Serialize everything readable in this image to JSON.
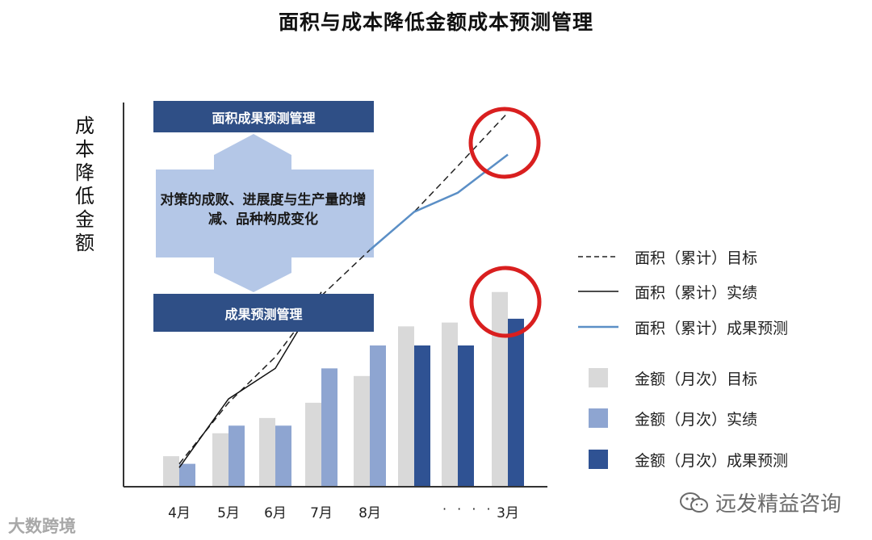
{
  "title": "面积与成本降低金额成本预测管理",
  "chart_data": {
    "type": "bar",
    "title": "面积与成本降低金额成本预测管理",
    "ylabel": "成本降低金额",
    "xlabel": "",
    "categories": [
      "4月",
      "5月",
      "6月",
      "7月",
      "8月",
      "",
      "",
      "3月"
    ],
    "gap_label": "· · · ·",
    "ylim": [
      0,
      100
    ],
    "series": [
      {
        "name": "金额（月次）目标",
        "kind": "bar",
        "color": "#d9d9d9",
        "values": [
          8,
          14,
          18,
          22,
          29,
          42,
          43,
          51
        ]
      },
      {
        "name": "金额（月次）实绩",
        "kind": "bar",
        "color": "#8ea5d1",
        "values": [
          6,
          16,
          16,
          31,
          37,
          null,
          null,
          null
        ]
      },
      {
        "name": "金额（月次）成果预测",
        "kind": "bar",
        "color": "#2f5293",
        "values": [
          null,
          null,
          null,
          null,
          null,
          37,
          37,
          44
        ]
      },
      {
        "name": "面积（累计）目标",
        "kind": "line",
        "style": "dashed",
        "color": "#222222",
        "values": [
          6,
          22,
          34,
          50,
          62,
          72,
          84,
          98
        ]
      },
      {
        "name": "面积（累计）实绩",
        "kind": "line",
        "style": "solid",
        "color": "#111111",
        "values": [
          5,
          23,
          31,
          51,
          null,
          null,
          null,
          null
        ]
      },
      {
        "name": "面积（累计）成果预测",
        "kind": "line",
        "style": "solid",
        "color": "#5b8fc6",
        "values": [
          null,
          null,
          null,
          null,
          62,
          72,
          77,
          87
        ]
      }
    ]
  },
  "annotation": {
    "top_box": "面积成果预测管理",
    "middle_text": "对策的成败、进展度与生产量的增减、品种构成变化",
    "bottom_box": "成果预测管理"
  },
  "legend": [
    {
      "label": "面积（累计）目标",
      "swatch": "dashed-line",
      "color": "#222222"
    },
    {
      "label": "面积（累计）实绩",
      "swatch": "solid-line",
      "color": "#111111"
    },
    {
      "label": "面积（累计）成果预测",
      "swatch": "solid-line",
      "color": "#5b8fc6"
    },
    {
      "label": "金额（月次）目标",
      "swatch": "square",
      "color": "#d9d9d9"
    },
    {
      "label": "金额（月次）实绩",
      "swatch": "square",
      "color": "#8ea5d1"
    },
    {
      "label": "金额（月次）成果预测",
      "swatch": "square",
      "color": "#2f5293"
    }
  ],
  "colors": {
    "highlight_circle": "#d91f1f",
    "arrow": "#b4c7e7",
    "box": "#2f4f86"
  },
  "watermarks": {
    "right": "远发精益咨询",
    "right_icon": "wechat-icon",
    "left": "大数跨境"
  }
}
